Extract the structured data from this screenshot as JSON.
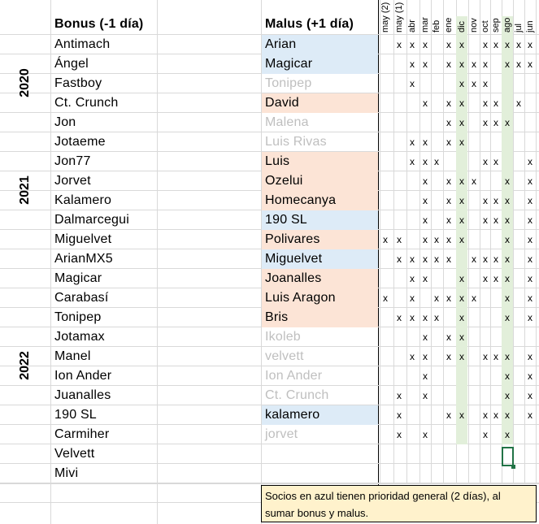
{
  "headers": {
    "bonus": "Bonus (-1 día)",
    "malus": "Malus (+1 día)"
  },
  "years": [
    "2020",
    "2021",
    "2022"
  ],
  "months": [
    "may (2)",
    "may (1)",
    "abr",
    "mar",
    "feb",
    "ene",
    "dic",
    "nov",
    "oct",
    "sep",
    "ago",
    "jul",
    "jun"
  ],
  "rows": [
    {
      "bonus": "Antimach",
      "malus": "Arian",
      "malus_style": "blue",
      "marks": [
        0,
        1,
        1,
        1,
        0,
        1,
        1,
        0,
        1,
        1,
        1,
        1,
        1
      ]
    },
    {
      "bonus": "Ángel",
      "malus": "Magicar",
      "malus_style": "blue",
      "marks": [
        0,
        0,
        1,
        1,
        0,
        1,
        1,
        1,
        1,
        0,
        1,
        1,
        1
      ]
    },
    {
      "bonus": "Fastboy",
      "malus": "Tonipep",
      "malus_style": "gray",
      "marks": [
        0,
        0,
        1,
        0,
        0,
        0,
        1,
        1,
        1,
        0,
        0,
        0,
        0
      ]
    },
    {
      "bonus": "Ct. Crunch",
      "malus": "David",
      "malus_style": "orange",
      "marks": [
        0,
        0,
        0,
        1,
        0,
        1,
        1,
        0,
        1,
        1,
        0,
        1,
        0
      ]
    },
    {
      "bonus": "Jon",
      "malus": "Malena",
      "malus_style": "gray",
      "marks": [
        0,
        0,
        0,
        0,
        0,
        1,
        1,
        0,
        1,
        1,
        1,
        0,
        0
      ]
    },
    {
      "bonus": "Jotaeme",
      "malus": "Luis Rivas",
      "malus_style": "gray",
      "marks": [
        0,
        0,
        1,
        1,
        0,
        1,
        1,
        0,
        0,
        0,
        0,
        0,
        0
      ]
    },
    {
      "bonus": "Jon77",
      "malus": "Luis",
      "malus_style": "orange",
      "marks": [
        0,
        0,
        1,
        1,
        1,
        0,
        0,
        0,
        1,
        1,
        0,
        0,
        1
      ]
    },
    {
      "bonus": "Jorvet",
      "malus": "Ozelui",
      "malus_style": "orange",
      "marks": [
        0,
        0,
        0,
        1,
        0,
        1,
        1,
        1,
        0,
        0,
        1,
        0,
        1
      ]
    },
    {
      "bonus": "Kalamero",
      "malus": "Homecanya",
      "malus_style": "orange",
      "marks": [
        0,
        0,
        0,
        1,
        0,
        1,
        1,
        0,
        1,
        1,
        1,
        0,
        1
      ]
    },
    {
      "bonus": "Dalmarcegui",
      "malus": "190 SL",
      "malus_style": "blue",
      "marks": [
        0,
        0,
        0,
        1,
        0,
        1,
        1,
        0,
        1,
        1,
        1,
        0,
        1
      ]
    },
    {
      "bonus": "Miguelvet",
      "malus": "Polivares",
      "malus_style": "orange",
      "marks": [
        1,
        1,
        0,
        1,
        1,
        1,
        1,
        0,
        0,
        0,
        1,
        0,
        1
      ]
    },
    {
      "bonus": "ArianMX5",
      "malus": "Miguelvet",
      "malus_style": "blue",
      "marks": [
        0,
        1,
        1,
        1,
        1,
        1,
        0,
        1,
        1,
        1,
        1,
        0,
        1
      ]
    },
    {
      "bonus": "Magicar",
      "malus": "Joanalles",
      "malus_style": "orange",
      "marks": [
        0,
        0,
        1,
        1,
        0,
        0,
        1,
        0,
        1,
        1,
        1,
        0,
        1
      ]
    },
    {
      "bonus": "Carabasí",
      "malus": "Luis Aragon",
      "malus_style": "orange",
      "marks": [
        1,
        0,
        1,
        0,
        1,
        1,
        1,
        1,
        0,
        0,
        1,
        0,
        1
      ]
    },
    {
      "bonus": "Tonipep",
      "malus": "Bris",
      "malus_style": "orange",
      "marks": [
        0,
        1,
        1,
        1,
        1,
        0,
        1,
        0,
        0,
        0,
        1,
        0,
        1
      ]
    },
    {
      "bonus": "Jotamax",
      "malus": "Ikoleb",
      "malus_style": "gray",
      "marks": [
        0,
        0,
        0,
        1,
        0,
        1,
        1,
        0,
        0,
        0,
        0,
        0,
        0
      ]
    },
    {
      "bonus": "Manel",
      "malus": "velvett",
      "malus_style": "gray",
      "marks": [
        0,
        0,
        1,
        1,
        0,
        1,
        1,
        0,
        1,
        1,
        1,
        0,
        1
      ]
    },
    {
      "bonus": "Ion Ander",
      "malus": "Ion Ander",
      "malus_style": "gray",
      "marks": [
        0,
        0,
        0,
        1,
        0,
        0,
        0,
        0,
        0,
        0,
        1,
        0,
        1
      ]
    },
    {
      "bonus": "Juanalles",
      "malus": "Ct. Crunch",
      "malus_style": "gray",
      "marks": [
        0,
        1,
        0,
        1,
        0,
        0,
        0,
        0,
        0,
        0,
        1,
        0,
        1
      ]
    },
    {
      "bonus": "190 SL",
      "malus": "kalamero",
      "malus_style": "blue",
      "marks": [
        0,
        1,
        0,
        0,
        0,
        1,
        1,
        0,
        1,
        1,
        1,
        0,
        1
      ]
    },
    {
      "bonus": "Carmiher",
      "malus": "jorvet",
      "malus_style": "gray",
      "marks": [
        0,
        1,
        0,
        1,
        0,
        0,
        0,
        0,
        1,
        0,
        1,
        0,
        0
      ]
    },
    {
      "bonus": "Velvett",
      "malus": "",
      "malus_style": "none",
      "marks": [
        0,
        0,
        0,
        0,
        0,
        0,
        0,
        0,
        0,
        0,
        0,
        0,
        0
      ]
    },
    {
      "bonus": "Mivi",
      "malus": "",
      "malus_style": "none",
      "marks": [
        0,
        0,
        0,
        0,
        0,
        0,
        0,
        0,
        0,
        0,
        0,
        0,
        0
      ]
    }
  ],
  "mark_symbol": "x",
  "note": "Socios en azul tienen prioridad general (2 días), al sumar bonus y malus.",
  "colors": {
    "blue": "#ddebf7",
    "orange": "#fce4d6",
    "green": "#e2efda",
    "note_bg": "#fff2cc",
    "gray_text": "#bfbfbf",
    "selection": "#217346"
  }
}
